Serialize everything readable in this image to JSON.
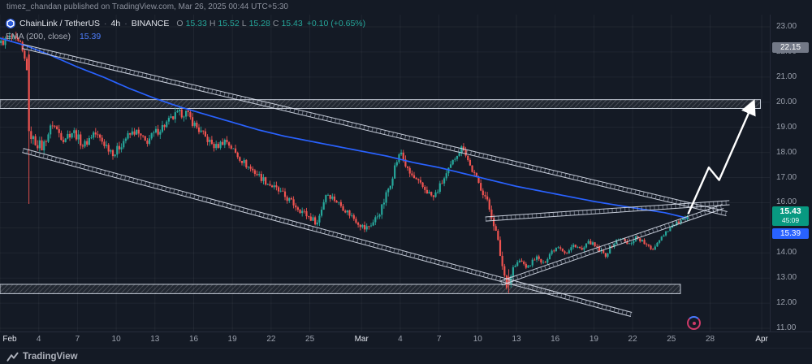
{
  "attribution": "timez_chandan published on TradingView.com, Mar 26, 2025 00:44 UTC+5:30",
  "legend": {
    "symbol": "ChainLink / TetherUS",
    "separator": "·",
    "interval": "4h",
    "exchange": "BINANCE",
    "ohlc": {
      "o_label": "O",
      "o": "15.33",
      "h_label": "H",
      "h": "15.52",
      "l_label": "L",
      "l": "15.28",
      "c_label": "C",
      "c": "15.43",
      "change": "+0.10 (+0.65%)"
    },
    "indicator": {
      "name": "EMA (200, close)",
      "value": "15.39"
    }
  },
  "price_axis": {
    "ticks": [
      "23.00",
      "22.00",
      "21.00",
      "20.00",
      "19.00",
      "18.00",
      "17.00",
      "16.00",
      "15.00",
      "14.00",
      "13.00",
      "12.00",
      "11.00"
    ],
    "high_label": "22.15",
    "last_price_label": "15.43",
    "countdown": "45:09",
    "ema_label": "15.39"
  },
  "time_axis": {
    "ticks": [
      {
        "label": "Feb",
        "day": 0,
        "major": true
      },
      {
        "label": "4",
        "day": 3
      },
      {
        "label": "7",
        "day": 6
      },
      {
        "label": "10",
        "day": 9
      },
      {
        "label": "13",
        "day": 12
      },
      {
        "label": "16",
        "day": 15
      },
      {
        "label": "19",
        "day": 18
      },
      {
        "label": "22",
        "day": 21
      },
      {
        "label": "25",
        "day": 24
      },
      {
        "label": "Mar",
        "day": 28,
        "major": true
      },
      {
        "label": "4",
        "day": 31
      },
      {
        "label": "7",
        "day": 34
      },
      {
        "label": "10",
        "day": 37
      },
      {
        "label": "13",
        "day": 40
      },
      {
        "label": "16",
        "day": 43
      },
      {
        "label": "19",
        "day": 46
      },
      {
        "label": "22",
        "day": 49
      },
      {
        "label": "25",
        "day": 52
      },
      {
        "label": "28",
        "day": 55
      },
      {
        "label": "Apr",
        "day": 59,
        "major": true
      }
    ]
  },
  "footer": {
    "brand": "TradingView"
  },
  "colors": {
    "background": "#141a25",
    "up": "#26a69a",
    "down": "#ef5350",
    "ema": "#2962ff",
    "grid": "rgba(255,255,255,0.05)",
    "drawing": "rgba(220,226,238,0.9)",
    "arrow": "#ffffff",
    "last_price_bg": "#089981",
    "ema_label_bg": "#2962ff"
  },
  "chart_data": {
    "type": "candlestick",
    "title": "ChainLink / TetherUS 4h BINANCE",
    "day0_date": "2025-02-01",
    "days_span": 53.17,
    "y_range": [
      11,
      23
    ],
    "current_bar": {
      "open": 15.33,
      "high": 15.52,
      "low": 15.28,
      "close": 15.43,
      "change": "+0.10 (+0.65%)"
    },
    "ema_200_value": 15.39,
    "high_marker_price": 22.15,
    "price_anchors": [
      [
        0,
        22.35
      ],
      [
        0.8,
        22.6
      ],
      [
        1.5,
        22.25
      ],
      [
        2,
        21.4
      ],
      [
        2.17,
        18.9
      ],
      [
        2.5,
        18.5
      ],
      [
        3.2,
        18.2
      ],
      [
        4,
        19.15
      ],
      [
        4.8,
        18.55
      ],
      [
        5.6,
        18.85
      ],
      [
        6.4,
        18.25
      ],
      [
        7.2,
        18.8
      ],
      [
        8,
        18.35
      ],
      [
        8.8,
        17.95
      ],
      [
        9.6,
        18.55
      ],
      [
        10.4,
        18.85
      ],
      [
        11.2,
        18.4
      ],
      [
        12,
        18.8
      ],
      [
        12.8,
        19.15
      ],
      [
        13.6,
        19.5
      ],
      [
        14.3,
        19.6
      ],
      [
        15,
        19.1
      ],
      [
        15.8,
        18.6
      ],
      [
        16.6,
        18.2
      ],
      [
        17.4,
        18.5
      ],
      [
        18.2,
        17.95
      ],
      [
        19,
        17.5
      ],
      [
        19.8,
        17.15
      ],
      [
        20.6,
        16.8
      ],
      [
        21.4,
        16.5
      ],
      [
        22.2,
        16.15
      ],
      [
        23,
        15.8
      ],
      [
        23.8,
        15.45
      ],
      [
        24.5,
        15.2
      ],
      [
        25.2,
        16.4
      ],
      [
        25.9,
        16.1
      ],
      [
        26.7,
        15.7
      ],
      [
        27.5,
        15.3
      ],
      [
        28.2,
        14.95
      ],
      [
        28.9,
        15.25
      ],
      [
        29.5,
        15.8
      ],
      [
        30.1,
        16.7
      ],
      [
        30.6,
        17.6
      ],
      [
        31,
        18
      ],
      [
        31.5,
        17.25
      ],
      [
        32.2,
        16.85
      ],
      [
        32.9,
        16.5
      ],
      [
        33.5,
        16.2
      ],
      [
        34.1,
        16.75
      ],
      [
        34.7,
        17.3
      ],
      [
        35.3,
        17.95
      ],
      [
        35.8,
        18.25
      ],
      [
        36.3,
        17.5
      ],
      [
        36.9,
        16.85
      ],
      [
        37.5,
        16.25
      ],
      [
        38.1,
        15.35
      ],
      [
        38.5,
        14.4
      ],
      [
        38.9,
        13.3
      ],
      [
        39.25,
        12.6
      ],
      [
        39.6,
        13.35
      ],
      [
        40.2,
        13.7
      ],
      [
        40.8,
        13.4
      ],
      [
        41.4,
        13.85
      ],
      [
        42,
        13.55
      ],
      [
        42.6,
        14.05
      ],
      [
        43.2,
        14.3
      ],
      [
        43.8,
        13.95
      ],
      [
        44.4,
        14.35
      ],
      [
        45,
        14.1
      ],
      [
        45.6,
        14.45
      ],
      [
        46.2,
        14.15
      ],
      [
        46.8,
        13.9
      ],
      [
        47.4,
        14.35
      ],
      [
        48,
        14.6
      ],
      [
        48.6,
        14.3
      ],
      [
        49.2,
        14.65
      ],
      [
        49.8,
        14.4
      ],
      [
        50.4,
        14.1
      ],
      [
        51,
        14.55
      ],
      [
        51.6,
        14.9
      ],
      [
        52.2,
        15.15
      ],
      [
        52.8,
        15.3
      ],
      [
        53.17,
        15.43
      ]
    ],
    "ema_anchors": [
      [
        0,
        22.55
      ],
      [
        2,
        22.25
      ],
      [
        4,
        21.85
      ],
      [
        6,
        21.4
      ],
      [
        8,
        21
      ],
      [
        10,
        20.55
      ],
      [
        12,
        20.15
      ],
      [
        14,
        19.8
      ],
      [
        16,
        19.5
      ],
      [
        18,
        19.2
      ],
      [
        20,
        18.9
      ],
      [
        22,
        18.65
      ],
      [
        24,
        18.45
      ],
      [
        26,
        18.25
      ],
      [
        28,
        18.05
      ],
      [
        30,
        17.85
      ],
      [
        32,
        17.6
      ],
      [
        34,
        17.4
      ],
      [
        36,
        17.15
      ],
      [
        38,
        16.9
      ],
      [
        40,
        16.65
      ],
      [
        42,
        16.45
      ],
      [
        44,
        16.25
      ],
      [
        46,
        16.05
      ],
      [
        48,
        15.88
      ],
      [
        50,
        15.72
      ],
      [
        51.5,
        15.6
      ],
      [
        53.2,
        15.39
      ]
    ],
    "volatility": [
      [
        0,
        2,
        0.16
      ],
      [
        2,
        3.2,
        0.22
      ],
      [
        3.2,
        16,
        0.17
      ],
      [
        16,
        24,
        0.14
      ],
      [
        24,
        29,
        0.13
      ],
      [
        29,
        32,
        0.16
      ],
      [
        32,
        37.5,
        0.13
      ],
      [
        37.5,
        40,
        0.17
      ],
      [
        40,
        51,
        0.09
      ],
      [
        51,
        53.3,
        0.07
      ]
    ],
    "candle_overrides": [
      {
        "d": 2.17,
        "o": 21.9,
        "h": 22.05,
        "l": 15.95,
        "c": 18.85
      },
      {
        "d": 39.25,
        "o": 13.05,
        "h": 13.35,
        "l": 12.4,
        "c": 12.75
      },
      {
        "d": 53.17,
        "o": 15.33,
        "h": 15.52,
        "l": 15.28,
        "c": 15.43
      }
    ],
    "drawings": {
      "channel_upper": {
        "from": [
          1.76,
          22.22
        ],
        "to": [
          56.3,
          15.56
        ]
      },
      "channel_lower": {
        "from": [
          1.76,
          18.08
        ],
        "to": [
          48.9,
          11.55
        ]
      },
      "wedge_upper": {
        "from": [
          37.6,
          15.35
        ],
        "to": [
          56.5,
          16.0
        ]
      },
      "wedge_lower": {
        "from": [
          38.8,
          12.8
        ],
        "to": [
          56.0,
          15.85
        ]
      },
      "zone_upper": {
        "x_days": [
          0,
          58.9
        ],
        "price": [
          19.75,
          20.1
        ]
      },
      "zone_lower": {
        "x_days": [
          0,
          52.7
        ],
        "price": [
          12.38,
          12.75
        ]
      },
      "arrow": {
        "points": [
          [
            53.3,
            15.55
          ],
          [
            54.9,
            17.4
          ],
          [
            55.7,
            16.9
          ],
          [
            58.4,
            20.05
          ]
        ]
      }
    }
  }
}
